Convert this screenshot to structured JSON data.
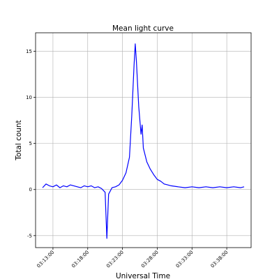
{
  "chart_data": {
    "type": "line",
    "title": "Mean light curve",
    "xlabel": "Universal Time",
    "ylabel": "Total count",
    "xlim": [
      "03:10:30",
      "03:41:30"
    ],
    "ylim": [
      -6.3,
      17
    ],
    "grid": true,
    "color": "#0000ff",
    "x_ticks": [
      "03:13:00",
      "03:18:00",
      "03:23:00",
      "03:28:00",
      "03:33:00",
      "03:38:00"
    ],
    "y_ticks": [
      -5,
      0,
      5,
      10,
      15
    ],
    "series": [
      {
        "points": [
          [
            "03:11:30",
            0.2
          ],
          [
            "03:12:00",
            0.6
          ],
          [
            "03:12:30",
            0.4
          ],
          [
            "03:13:00",
            0.3
          ],
          [
            "03:13:30",
            0.5
          ],
          [
            "03:14:00",
            0.2
          ],
          [
            "03:14:30",
            0.4
          ],
          [
            "03:15:00",
            0.3
          ],
          [
            "03:15:30",
            0.5
          ],
          [
            "03:16:00",
            0.4
          ],
          [
            "03:16:30",
            0.3
          ],
          [
            "03:17:00",
            0.2
          ],
          [
            "03:17:30",
            0.4
          ],
          [
            "03:18:00",
            0.3
          ],
          [
            "03:18:30",
            0.4
          ],
          [
            "03:19:00",
            0.2
          ],
          [
            "03:19:30",
            0.3
          ],
          [
            "03:20:00",
            0.1
          ],
          [
            "03:20:30",
            -0.3
          ],
          [
            "03:20:45",
            -5.3
          ],
          [
            "03:21:00",
            -0.5
          ],
          [
            "03:21:30",
            0.2
          ],
          [
            "03:22:00",
            0.3
          ],
          [
            "03:22:30",
            0.5
          ],
          [
            "03:23:00",
            1.0
          ],
          [
            "03:23:30",
            1.8
          ],
          [
            "03:24:00",
            3.5
          ],
          [
            "03:24:20",
            8.0
          ],
          [
            "03:24:40",
            13.5
          ],
          [
            "03:24:50",
            15.8
          ],
          [
            "03:25:00",
            14.0
          ],
          [
            "03:25:20",
            9.0
          ],
          [
            "03:25:40",
            6.0
          ],
          [
            "03:25:50",
            7.0
          ],
          [
            "03:26:00",
            4.5
          ],
          [
            "03:26:30",
            3.0
          ],
          [
            "03:27:00",
            2.2
          ],
          [
            "03:27:30",
            1.6
          ],
          [
            "03:28:00",
            1.1
          ],
          [
            "03:28:30",
            0.9
          ],
          [
            "03:29:00",
            0.6
          ],
          [
            "03:29:30",
            0.5
          ],
          [
            "03:30:00",
            0.4
          ],
          [
            "03:31:00",
            0.3
          ],
          [
            "03:32:00",
            0.2
          ],
          [
            "03:33:00",
            0.3
          ],
          [
            "03:34:00",
            0.2
          ],
          [
            "03:35:00",
            0.3
          ],
          [
            "03:36:00",
            0.2
          ],
          [
            "03:37:00",
            0.3
          ],
          [
            "03:38:00",
            0.2
          ],
          [
            "03:39:00",
            0.3
          ],
          [
            "03:40:00",
            0.2
          ],
          [
            "03:40:30",
            0.3
          ]
        ]
      }
    ]
  }
}
